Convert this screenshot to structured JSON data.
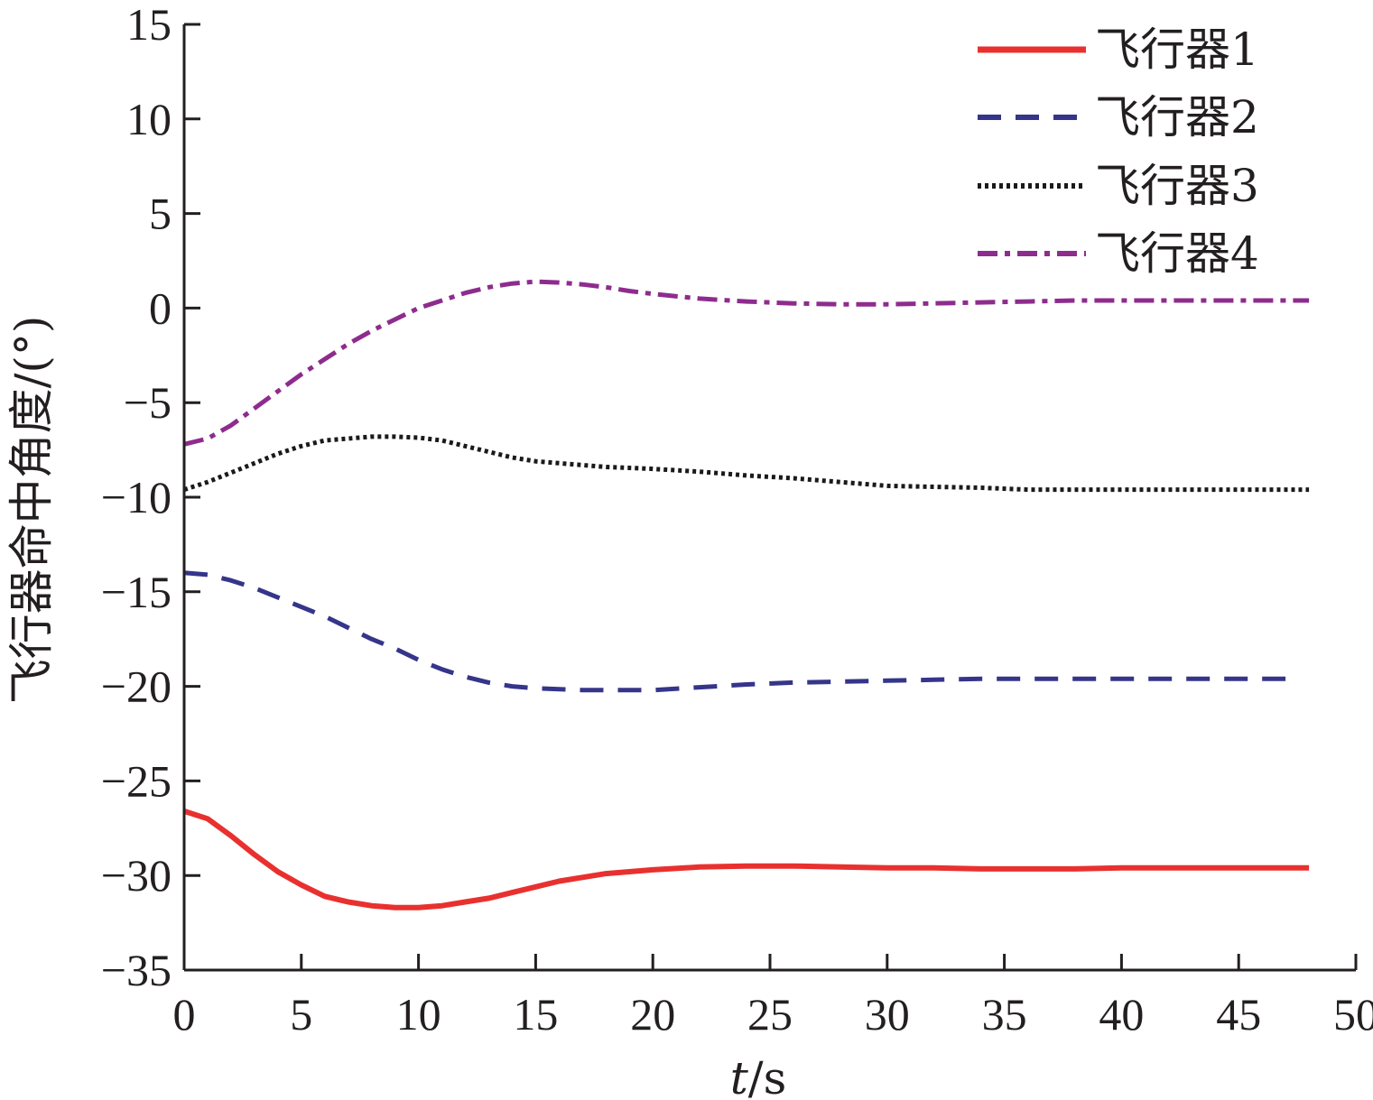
{
  "chart_data": {
    "type": "line",
    "xlabel_italic": "t",
    "xlabel_rest": "/s",
    "ylabel": "飞行器命中角度/(°)",
    "xlim": [
      0,
      50
    ],
    "ylim": [
      -35,
      15
    ],
    "xticks": [
      0,
      5,
      10,
      15,
      20,
      25,
      30,
      35,
      40,
      45,
      50
    ],
    "yticks": [
      15,
      10,
      5,
      0,
      -5,
      -10,
      -15,
      -20,
      -25,
      -30,
      -35
    ],
    "ytick_labels": [
      "15",
      "10",
      "5",
      "0",
      "−5",
      "−10",
      "−15",
      "−20",
      "−25",
      "−30",
      "−35"
    ],
    "grid": false,
    "legend_position": "top-right",
    "series": [
      {
        "name": "飞行器1",
        "color": "#e8312f",
        "style": "solid",
        "x": [
          0,
          1,
          2,
          3,
          4,
          5,
          6,
          7,
          8,
          9,
          10,
          11,
          12,
          13,
          14,
          15,
          16,
          17,
          18,
          19,
          20,
          22,
          24,
          26,
          28,
          30,
          32,
          34,
          36,
          38,
          40,
          42,
          44,
          46,
          48
        ],
        "y": [
          -26.6,
          -27.0,
          -27.9,
          -28.9,
          -29.8,
          -30.5,
          -31.1,
          -31.4,
          -31.6,
          -31.7,
          -31.7,
          -31.6,
          -31.4,
          -31.2,
          -30.9,
          -30.6,
          -30.3,
          -30.1,
          -29.9,
          -29.8,
          -29.7,
          -29.55,
          -29.5,
          -29.5,
          -29.55,
          -29.6,
          -29.6,
          -29.65,
          -29.65,
          -29.65,
          -29.6,
          -29.6,
          -29.6,
          -29.6,
          -29.6
        ]
      },
      {
        "name": "飞行器2",
        "color": "#35358a",
        "style": "dashed",
        "x": [
          0,
          1,
          2,
          3,
          4,
          5,
          6,
          7,
          8,
          9,
          10,
          11,
          12,
          13,
          14,
          15,
          16,
          17,
          18,
          19,
          20,
          22,
          24,
          26,
          28,
          30,
          32,
          34,
          36,
          38,
          40,
          42,
          44,
          46,
          47
        ],
        "y": [
          -14.0,
          -14.1,
          -14.4,
          -14.8,
          -15.3,
          -15.8,
          -16.3,
          -16.9,
          -17.5,
          -18.0,
          -18.6,
          -19.1,
          -19.5,
          -19.8,
          -20.0,
          -20.1,
          -20.15,
          -20.2,
          -20.2,
          -20.2,
          -20.2,
          -20.05,
          -19.9,
          -19.8,
          -19.75,
          -19.7,
          -19.65,
          -19.6,
          -19.6,
          -19.6,
          -19.6,
          -19.6,
          -19.6,
          -19.6,
          -19.6
        ]
      },
      {
        "name": "飞行器3",
        "color": "#1a1a1a",
        "style": "dotted",
        "x": [
          0,
          1,
          2,
          3,
          4,
          5,
          6,
          7,
          8,
          9,
          10,
          11,
          12,
          13,
          14,
          15,
          16,
          17,
          18,
          19,
          20,
          22,
          24,
          26,
          28,
          30,
          32,
          34,
          36,
          38,
          40,
          42,
          44,
          46,
          48
        ],
        "y": [
          -9.6,
          -9.2,
          -8.7,
          -8.2,
          -7.7,
          -7.3,
          -7.0,
          -6.9,
          -6.8,
          -6.8,
          -6.85,
          -7.0,
          -7.3,
          -7.6,
          -7.9,
          -8.1,
          -8.2,
          -8.3,
          -8.4,
          -8.45,
          -8.5,
          -8.65,
          -8.85,
          -9.0,
          -9.2,
          -9.4,
          -9.45,
          -9.5,
          -9.6,
          -9.6,
          -9.6,
          -9.6,
          -9.6,
          -9.6,
          -9.6
        ]
      },
      {
        "name": "飞行器4",
        "color": "#8e2c8e",
        "style": "dashdot",
        "x": [
          0,
          1,
          2,
          3,
          4,
          5,
          6,
          7,
          8,
          9,
          10,
          11,
          12,
          13,
          14,
          15,
          16,
          17,
          18,
          19,
          20,
          22,
          24,
          26,
          28,
          30,
          32,
          34,
          36,
          38,
          40,
          42,
          44,
          46,
          48
        ],
        "y": [
          -7.2,
          -6.9,
          -6.2,
          -5.3,
          -4.4,
          -3.5,
          -2.7,
          -1.9,
          -1.2,
          -0.6,
          0.0,
          0.4,
          0.8,
          1.1,
          1.3,
          1.4,
          1.35,
          1.25,
          1.1,
          0.9,
          0.75,
          0.5,
          0.35,
          0.25,
          0.2,
          0.2,
          0.25,
          0.3,
          0.35,
          0.4,
          0.4,
          0.4,
          0.4,
          0.4,
          0.4
        ]
      }
    ]
  }
}
